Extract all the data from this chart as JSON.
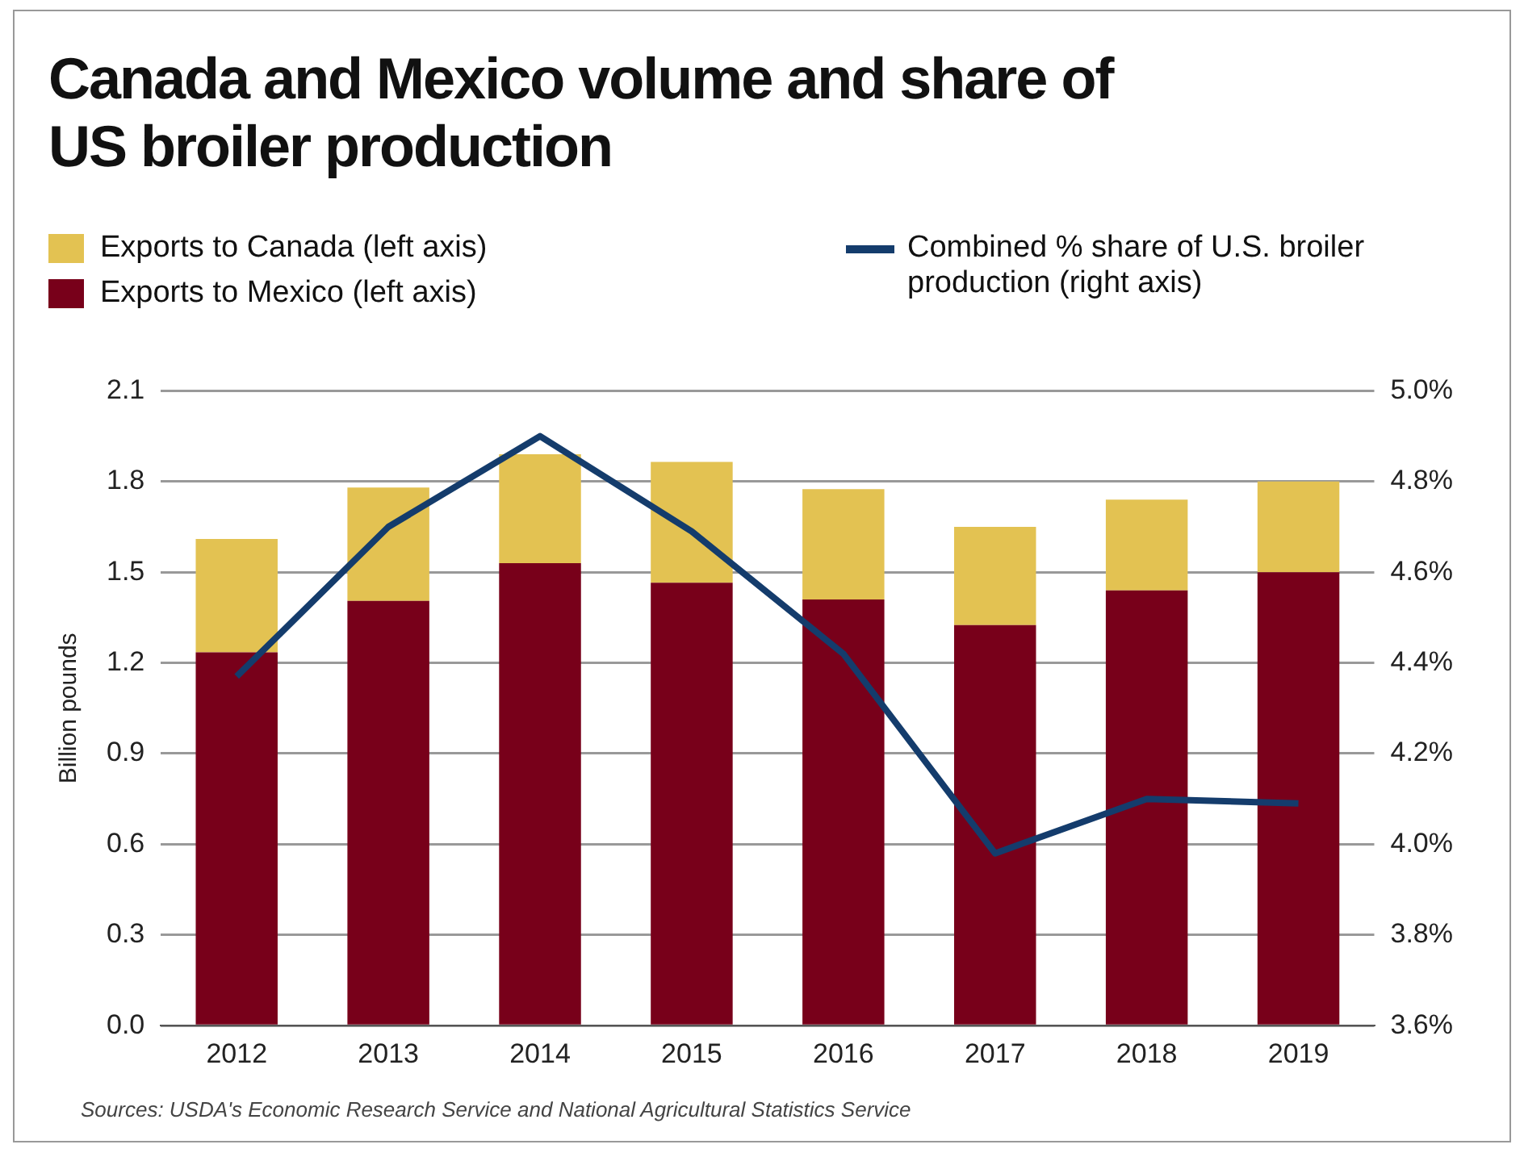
{
  "chart_data": {
    "type": "bar",
    "title": "Canada and Mexico volume and share of US broiler production",
    "ylabel": "Billion pounds",
    "categories": [
      "2012",
      "2013",
      "2014",
      "2015",
      "2016",
      "2017",
      "2018",
      "2019"
    ],
    "stacked": true,
    "series": [
      {
        "name": "Exports to Mexico (left axis)",
        "color": "#78001a",
        "values": [
          1.235,
          1.405,
          1.53,
          1.465,
          1.41,
          1.325,
          1.44,
          1.5
        ]
      },
      {
        "name": "Exports to Canada (left axis)",
        "color": "#e3c252",
        "values": [
          0.375,
          0.375,
          0.36,
          0.4,
          0.365,
          0.325,
          0.3,
          0.3
        ]
      },
      {
        "name": "Combined % share of U.S. broiler production (right axis)",
        "type": "line",
        "axis": "y2",
        "color": "#143c6c",
        "values": [
          4.37,
          4.7,
          4.9,
          4.69,
          4.42,
          3.98,
          4.1,
          4.09
        ]
      }
    ],
    "ylim": [
      0,
      2.1
    ],
    "yticks": [
      {
        "value": 0,
        "label": "0.0"
      },
      0.3,
      0.6,
      0.9,
      1.2,
      1.5,
      1.8,
      2.1
    ],
    "y2lim": [
      3.6,
      5.0
    ],
    "y2ticks": [
      {
        "value": 3.6,
        "label": "3.6%"
      },
      {
        "value": 3.8,
        "label": "3.8%"
      },
      {
        "value": 4.0,
        "label": "4.0%"
      },
      {
        "value": 4.2,
        "label": "4.2%"
      },
      {
        "value": 4.4,
        "label": "4.4%"
      },
      {
        "value": 4.6,
        "label": "4.6%"
      },
      {
        "value": 4.8,
        "label": "4.8%"
      },
      {
        "value": 5.0,
        "label": "5.0%"
      }
    ],
    "grid": "y",
    "legend": "top",
    "marker": "none",
    "line_style": "solid",
    "annotations": [
      "Sources: USDA's Economic Research Service and National Agricultural Statistics Service"
    ]
  }
}
